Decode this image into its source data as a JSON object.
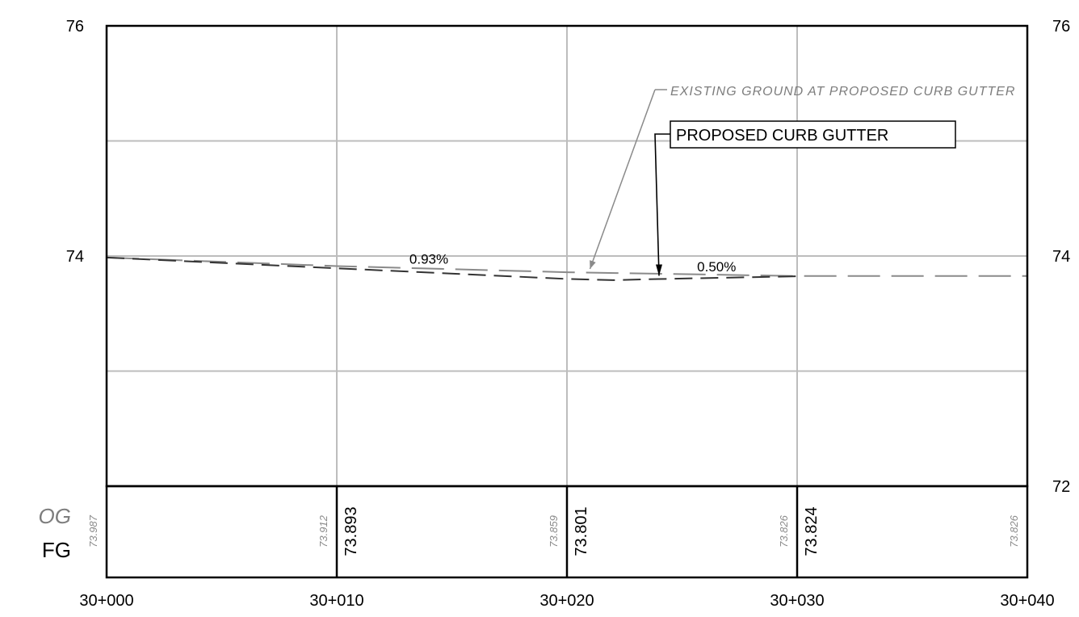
{
  "chart_data": {
    "type": "line",
    "x_unit": "station (m)",
    "x_range": [
      30000,
      30040
    ],
    "y_range": [
      72,
      76
    ],
    "x_ticks": [
      {
        "value": 30000,
        "label": "30+000"
      },
      {
        "value": 30010,
        "label": "30+010"
      },
      {
        "value": 30020,
        "label": "30+020"
      },
      {
        "value": 30030,
        "label": "30+030"
      },
      {
        "value": 30040,
        "label": "30+040"
      }
    ],
    "y_ticks_left": [
      {
        "value": 76,
        "label": "76"
      },
      {
        "value": 74,
        "label": "74"
      }
    ],
    "y_ticks_right": [
      {
        "value": 76,
        "label": "76"
      },
      {
        "value": 74,
        "label": "74"
      },
      {
        "value": 72,
        "label": "72"
      }
    ],
    "grid": true,
    "series": [
      {
        "key": "og",
        "color": "#8a8a8a",
        "style": "long-dash",
        "points": [
          [
            30000,
            73.987
          ],
          [
            30010,
            73.912
          ],
          [
            30020,
            73.859
          ],
          [
            30030,
            73.826
          ],
          [
            30040,
            73.826
          ]
        ]
      },
      {
        "key": "fg",
        "color": "#333333",
        "style": "dash",
        "points": [
          [
            30000,
            73.987
          ],
          [
            30010,
            73.893
          ],
          [
            30020,
            73.801
          ],
          [
            30022,
            73.79
          ],
          [
            30024,
            73.8
          ],
          [
            30030,
            73.824
          ]
        ]
      }
    ],
    "annotations": {
      "og_label": "EXISTING GROUND AT PROPOSED CURB GUTTER",
      "og_arrow_target": [
        30021,
        73.86
      ],
      "fg_label": "PROPOSED CURB GUTTER",
      "fg_arrow_target": [
        30024,
        73.8
      ],
      "grades": [
        {
          "label": "0.93%",
          "x": 30014,
          "y": 73.935
        },
        {
          "label": "0.50%",
          "x": 30026.5,
          "y": 73.865
        }
      ]
    },
    "data_band": {
      "og_label": "OG",
      "fg_label": "FG",
      "og_values": [
        {
          "x": 30000,
          "text": "73.987"
        },
        {
          "x": 30010,
          "text": "73.912"
        },
        {
          "x": 30020,
          "text": "73.859"
        },
        {
          "x": 30030,
          "text": "73.826"
        },
        {
          "x": 30040,
          "text": "73.826"
        }
      ],
      "fg_values": [
        {
          "x": 30010,
          "text": "73.893"
        },
        {
          "x": 30020,
          "text": "73.801"
        },
        {
          "x": 30030,
          "text": "73.824"
        }
      ]
    },
    "colors": {
      "grid": "#bdbdbd",
      "frame": "#000000",
      "og": "#8a8a8a",
      "fg": "#333333"
    }
  }
}
